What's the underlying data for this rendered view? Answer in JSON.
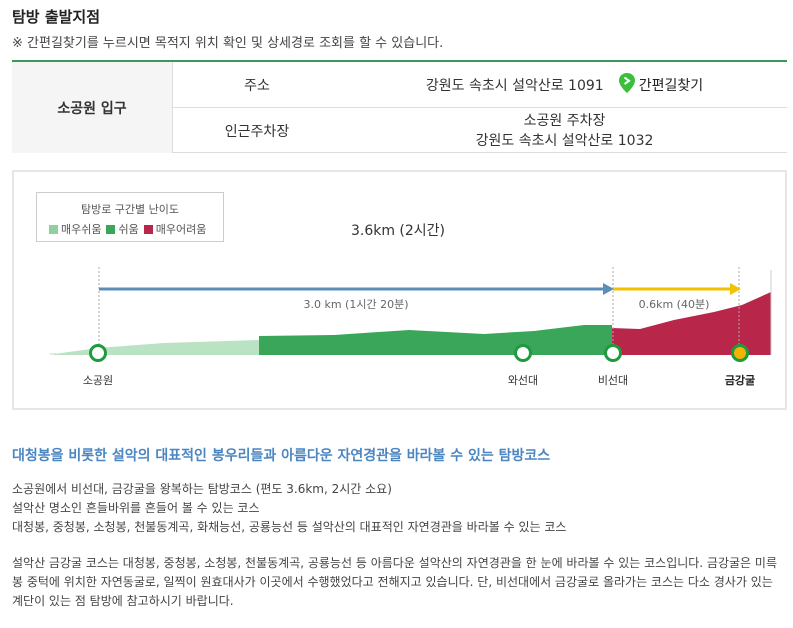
{
  "section": {
    "title": "탐방 출발지점",
    "note": "※ 간편길찾기를 누르시면 목적지 위치 확인 및 상세경로 조회를 할 수 있습니다."
  },
  "entrance": {
    "name": "소공원 입구",
    "address_label": "주소",
    "address_value": "강원도 속초시 설악산로 1091",
    "directions_label": "간편길찾기",
    "parking_label": "인근주차장",
    "parking_name": "소공원 주차장",
    "parking_address": "강원도 속초시 설악산로 1032"
  },
  "profile": {
    "legend_title": "탐방로 구간별 난이도",
    "legend": [
      {
        "label": "매우쉬움",
        "color": "#8fd0a0"
      },
      {
        "label": "쉬움",
        "color": "#3aa65a"
      },
      {
        "label": "매우어려움",
        "color": "#b8264a"
      }
    ],
    "total": "3.6km (2시간)",
    "segments": [
      {
        "label": "3.0 km (1시간 20분)",
        "color": "#5b8fb9"
      },
      {
        "label": "0.6km (40분)",
        "color": "#f2c200"
      }
    ],
    "points": [
      "소공원",
      "와선대",
      "비선대",
      "금강굴"
    ]
  },
  "course": {
    "heading": "대청봉을 비롯한 설악의 대표적인 봉우리들과 아름다운 자연경관을 바라볼 수 있는 탐방코스",
    "lines": [
      "소공원에서 비선대, 금강굴을 왕복하는 탐방코스 (편도 3.6km, 2시간 소요)",
      "설악산 명소인 흔들바위를 흔들어 볼 수 있는 코스",
      "대청봉, 중청봉, 소청봉, 천불동계곡, 화채능선, 공룡능선 등 설악산의 대표적인 자연경관을 바라볼 수 있는 코스"
    ],
    "desc_1": "설악산 금강굴 코스는 대청봉, 중청봉, 소청봉, 천불동계곡, 공룡능선 등 아름다운 설악산의 자연경관을 한 눈에 바라볼 수 있는 코스입니다. 금강굴은 미륵",
    "desc_2": "봉 중턱에 위치한 자연동굴로, 일찍이 원효대사가 이곳에서 수행했었다고 전해지고 있습니다. 단, 비선대에서 금강굴로 올라가는 코스는 다소 경사가 있는",
    "desc_3": "계단이 있는 점 탐방에 참고하시기 바랍니다."
  }
}
